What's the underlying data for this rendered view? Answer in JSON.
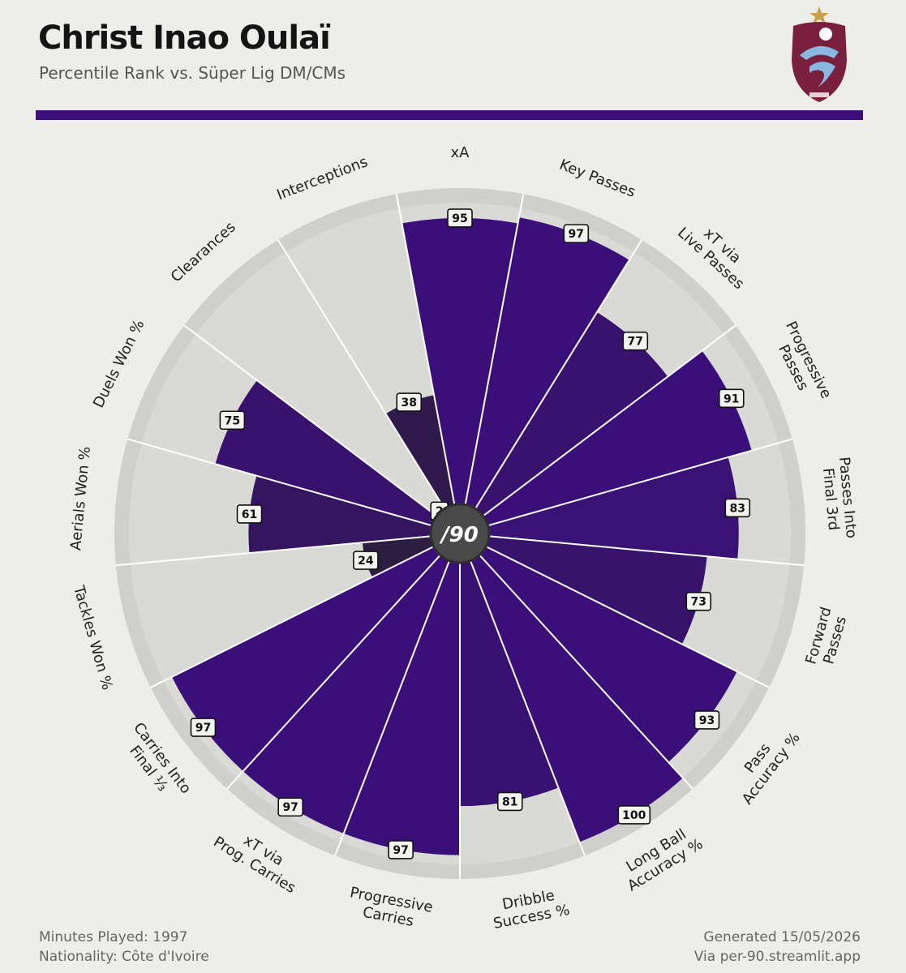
{
  "header": {
    "title": "Christ Inao Oulaï",
    "subtitle": "Percentile Rank vs. Süper Lig DM/CMs"
  },
  "center_logo": "/90",
  "footer": {
    "minutes": "Minutes Played: 1997",
    "nationality": "Nationality: Côte d'Ivoire",
    "generated": "Generated 15/05/2026",
    "via": "Via per-90.streamlit.app"
  },
  "colors": {
    "background": "#ededea",
    "accent": "#3b0f7a",
    "track": "#d9d9d6",
    "track_edge": "#cfcfcc",
    "label_box": "#f2f2ee"
  },
  "icons": {
    "crest": "trabzonspor-crest-icon"
  },
  "chart_data": {
    "type": "polar-bar",
    "title": "",
    "categories": [
      "xA",
      "Key Passes",
      "xT via Live Passes",
      "Progressive Passes",
      "Passes Into Final 3rd",
      "Forward Passes",
      "Pass Accuracy %",
      "Long Ball Accuracy %",
      "Dribble Success %",
      "Progressive Carries",
      "xT via Prog. Carries",
      "Carries Into Final ⅓",
      "Tackles Won %",
      "Aerials Won %",
      "Duels Won %",
      "Clearances",
      "Interceptions"
    ],
    "label_lines": [
      [
        "xA"
      ],
      [
        "Key Passes"
      ],
      [
        "xT via",
        "Live Passes"
      ],
      [
        "Progressive",
        "Passes"
      ],
      [
        "Passes Into",
        "Final 3rd"
      ],
      [
        "Forward",
        "Passes"
      ],
      [
        "Pass",
        "Accuracy %"
      ],
      [
        "Long Ball",
        "Accuracy %"
      ],
      [
        "Dribble",
        "Success %"
      ],
      [
        "Progressive",
        "Carries"
      ],
      [
        "xT via",
        "Prog. Carries"
      ],
      [
        "Carries Into",
        "Final ⅓"
      ],
      [
        "Tackles Won %"
      ],
      [
        "Aerials Won %"
      ],
      [
        "Duels Won %"
      ],
      [
        "Clearances"
      ],
      [
        "Interceptions"
      ]
    ],
    "values": [
      95,
      97,
      77,
      91,
      83,
      73,
      93,
      100,
      81,
      97,
      97,
      97,
      24,
      61,
      75,
      2,
      38
    ],
    "range": [
      0,
      100
    ]
  }
}
